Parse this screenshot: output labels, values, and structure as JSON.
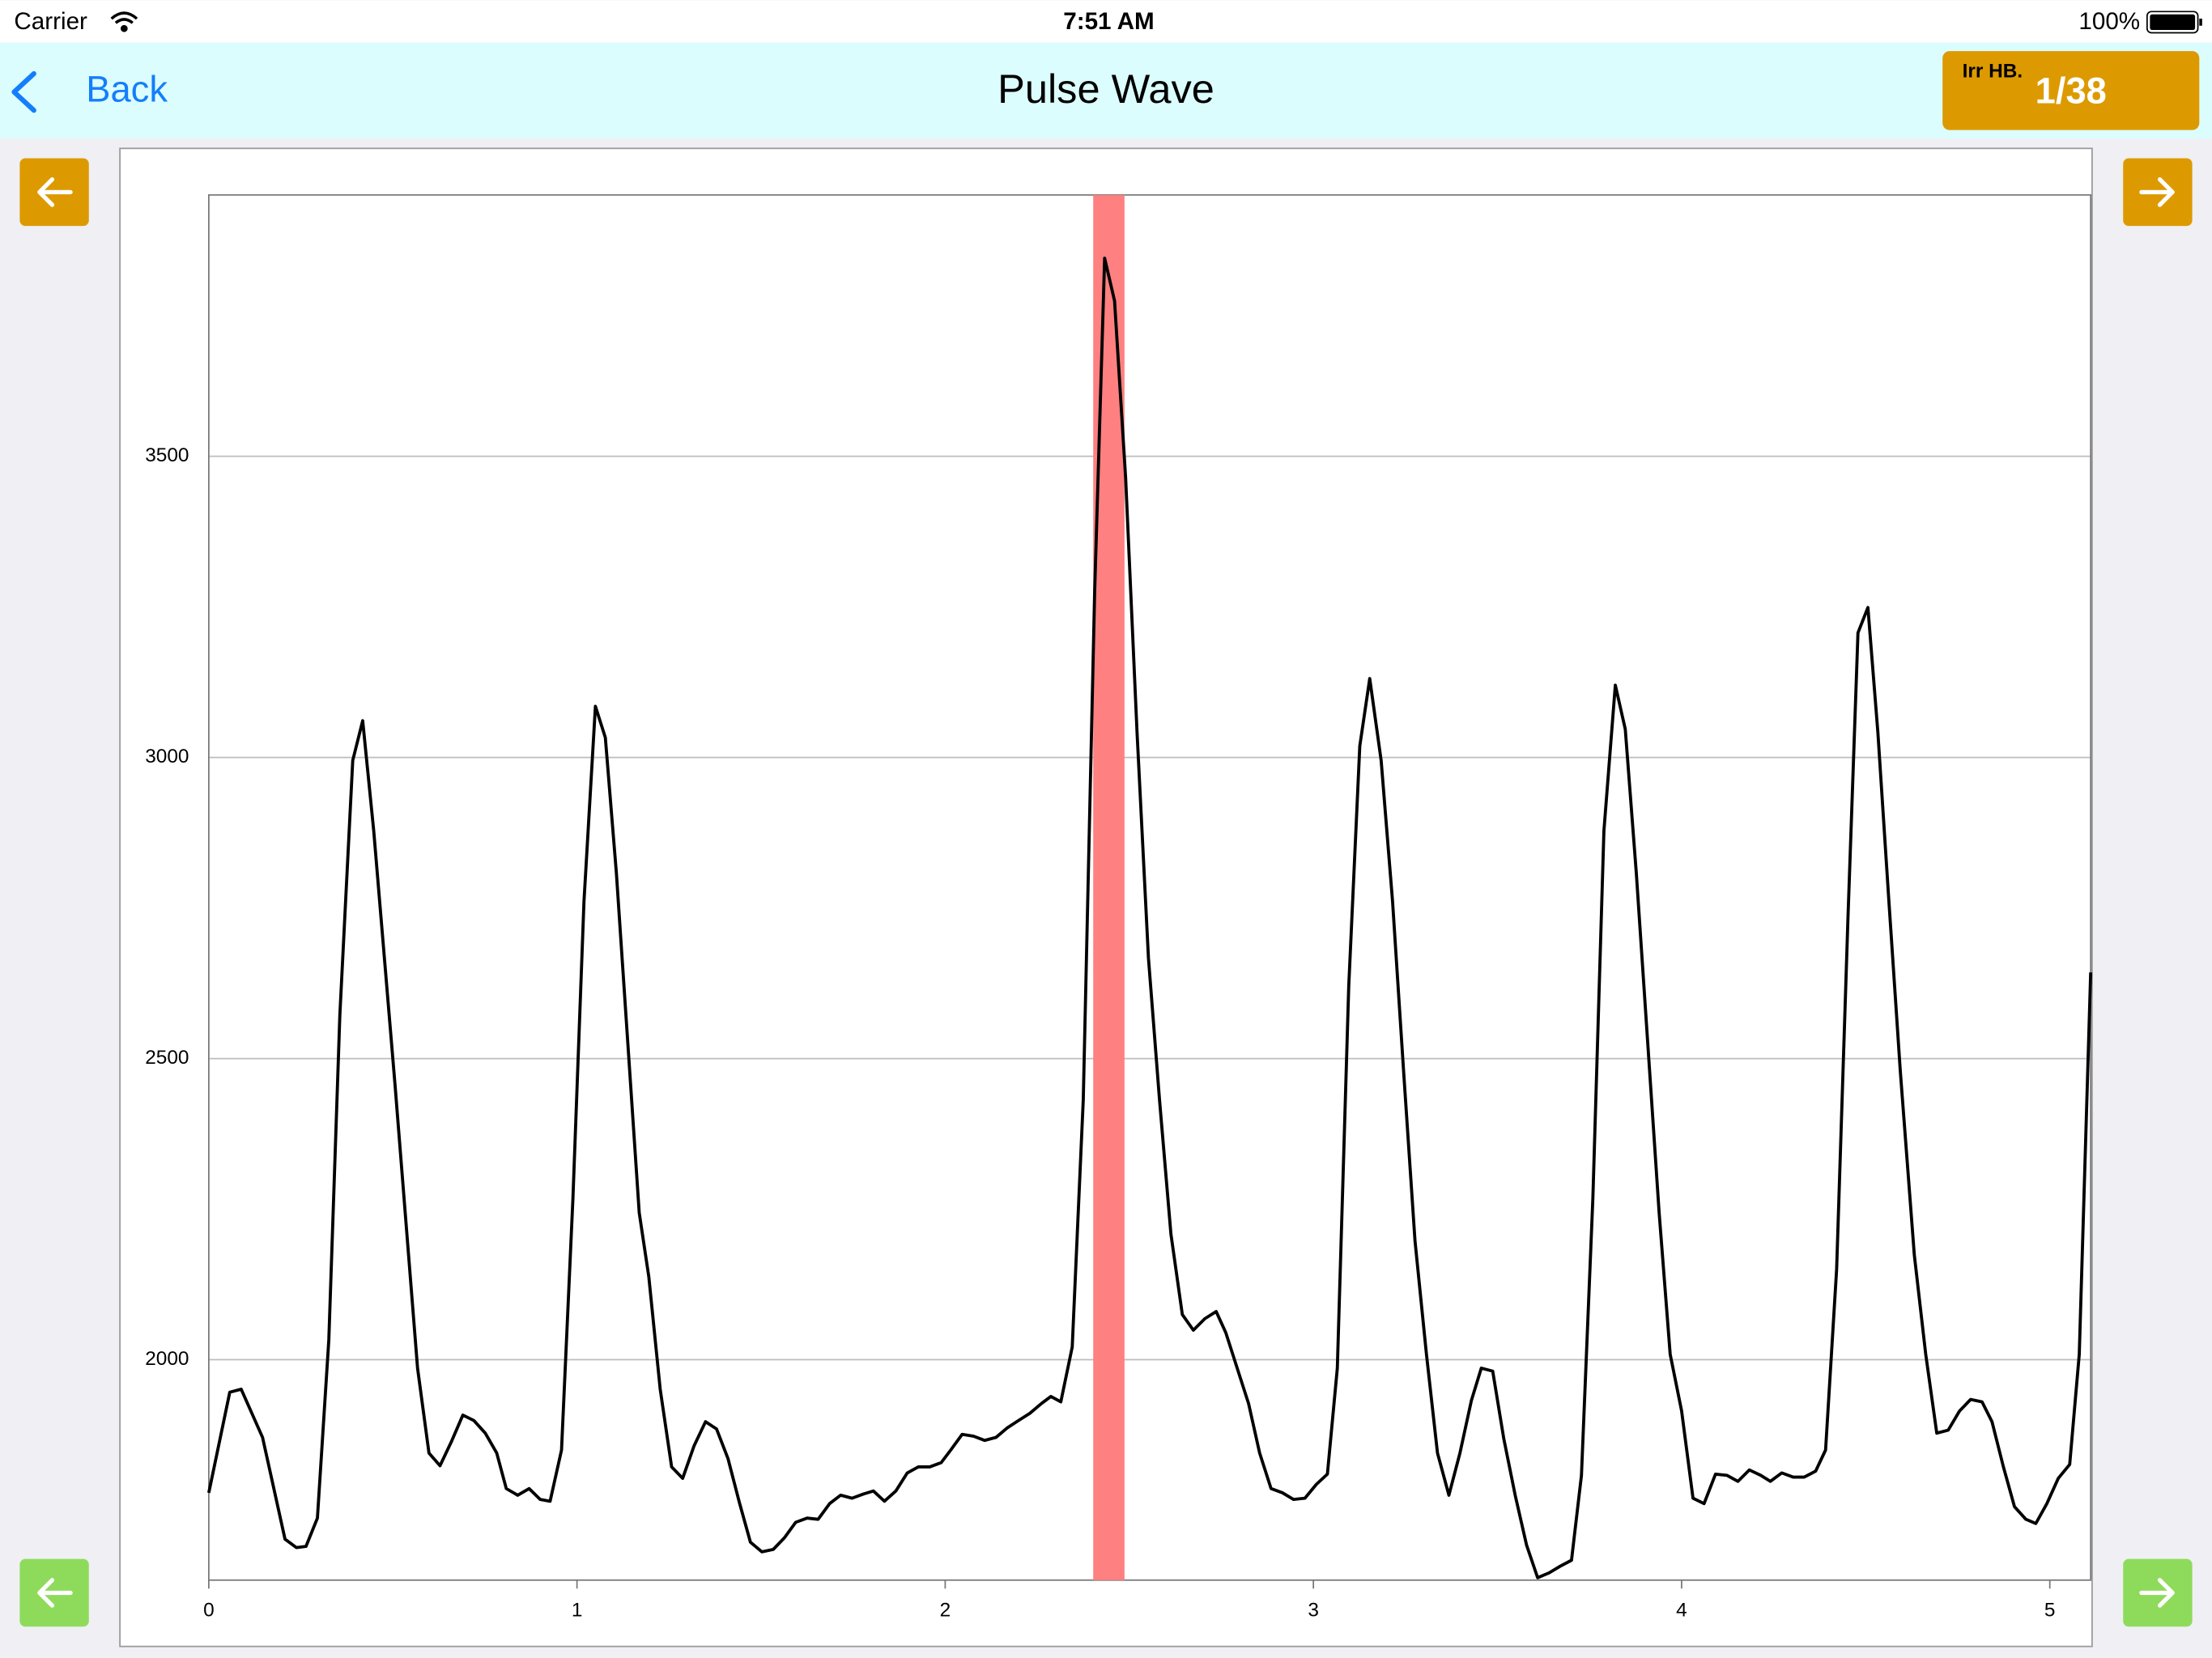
{
  "status_bar": {
    "carrier": "Carrier",
    "time": "7:51 AM",
    "battery": "100%"
  },
  "nav_bar": {
    "back": "Back",
    "title": "Pulse Wave",
    "badge_label": "Irr HB.",
    "badge_value": "1/38"
  },
  "chart_data": {
    "type": "line",
    "line_color": "#000000",
    "grid": true,
    "xlim": [
      0,
      5.111
    ],
    "ylim": [
      1634,
      3934
    ],
    "xticks": [
      0,
      1,
      2,
      3,
      4,
      5
    ],
    "yticks": [
      2000,
      2500,
      3000,
      3500
    ],
    "highlight": {
      "x": [
        2.402,
        2.487
      ],
      "color": "#ff8080"
    },
    "x": [
      0,
      0.057,
      0.088,
      0.146,
      0.207,
      0.238,
      0.264,
      0.295,
      0.326,
      0.356,
      0.391,
      0.418,
      0.448,
      0.506,
      0.567,
      0.598,
      0.628,
      0.659,
      0.69,
      0.72,
      0.751,
      0.782,
      0.808,
      0.839,
      0.87,
      0.9,
      0.927,
      0.958,
      0.989,
      1.019,
      1.05,
      1.077,
      1.107,
      1.169,
      1.195,
      1.226,
      1.257,
      1.287,
      1.318,
      1.349,
      1.379,
      1.41,
      1.441,
      1.471,
      1.502,
      1.533,
      1.563,
      1.594,
      1.625,
      1.655,
      1.686,
      1.716,
      1.747,
      1.778,
      1.805,
      1.835,
      1.866,
      1.897,
      1.927,
      1.958,
      1.989,
      2.015,
      2.046,
      2.077,
      2.107,
      2.138,
      2.169,
      2.199,
      2.23,
      2.261,
      2.287,
      2.314,
      2.345,
      2.375,
      2.406,
      2.433,
      2.46,
      2.49,
      2.521,
      2.552,
      2.582,
      2.613,
      2.644,
      2.674,
      2.705,
      2.736,
      2.762,
      2.793,
      2.824,
      2.854,
      2.885,
      2.916,
      2.946,
      2.977,
      3.008,
      3.038,
      3.065,
      3.096,
      3.126,
      3.153,
      3.184,
      3.215,
      3.245,
      3.276,
      3.307,
      3.337,
      3.368,
      3.398,
      3.429,
      3.456,
      3.487,
      3.517,
      3.548,
      3.579,
      3.609,
      3.64,
      3.67,
      3.701,
      3.728,
      3.759,
      3.789,
      3.82,
      3.847,
      3.877,
      3.908,
      3.939,
      3.969,
      4.0,
      4.031,
      4.061,
      4.092,
      4.123,
      4.153,
      4.184,
      4.215,
      4.241,
      4.272,
      4.303,
      4.333,
      4.364,
      4.391,
      4.421,
      4.452,
      4.479,
      4.506,
      4.533,
      4.563,
      4.594,
      4.632,
      4.663,
      4.693,
      4.724,
      4.755,
      4.785,
      4.816,
      4.843,
      4.874,
      4.904,
      4.935,
      4.962,
      4.992,
      5.023,
      5.054,
      5.08,
      5.111
    ],
    "values": [
      1779,
      1946,
      1951,
      1871,
      1702,
      1688,
      1690,
      1737,
      2033,
      2573,
      2995,
      3061,
      2878,
      2455,
      1986,
      1845,
      1824,
      1864,
      1908,
      1899,
      1878,
      1845,
      1786,
      1775,
      1786,
      1768,
      1765,
      1850,
      2268,
      2761,
      3085,
      3033,
      2808,
      2244,
      2138,
      1951,
      1822,
      1803,
      1857,
      1897,
      1885,
      1836,
      1763,
      1697,
      1681,
      1685,
      1704,
      1730,
      1737,
      1735,
      1761,
      1775,
      1770,
      1777,
      1782,
      1765,
      1782,
      1812,
      1822,
      1822,
      1829,
      1850,
      1876,
      1873,
      1866,
      1871,
      1887,
      1899,
      1911,
      1927,
      1939,
      1930,
      2021,
      2432,
      3277,
      3829,
      3758,
      3465,
      3042,
      2667,
      2432,
      2209,
      2075,
      2049,
      2068,
      2080,
      2045,
      1986,
      1927,
      1845,
      1786,
      1779,
      1768,
      1770,
      1793,
      1810,
      1986,
      2620,
      3019,
      3131,
      2995,
      2761,
      2479,
      2197,
      2009,
      1845,
      1775,
      1845,
      1932,
      1986,
      1981,
      1869,
      1775,
      1692,
      1638,
      1646,
      1657,
      1667,
      1808,
      2268,
      2878,
      3120,
      3047,
      2808,
      2526,
      2244,
      2009,
      1915,
      1770,
      1761,
      1810,
      1808,
      1798,
      1817,
      1808,
      1798,
      1812,
      1805,
      1805,
      1815,
      1850,
      2150,
      2737,
      3207,
      3249,
      3042,
      2761,
      2479,
      2174,
      2009,
      1878,
      1883,
      1915,
      1934,
      1930,
      1897,
      1822,
      1756,
      1735,
      1728,
      1761,
      1803,
      1826,
      2009,
      2643
    ]
  }
}
